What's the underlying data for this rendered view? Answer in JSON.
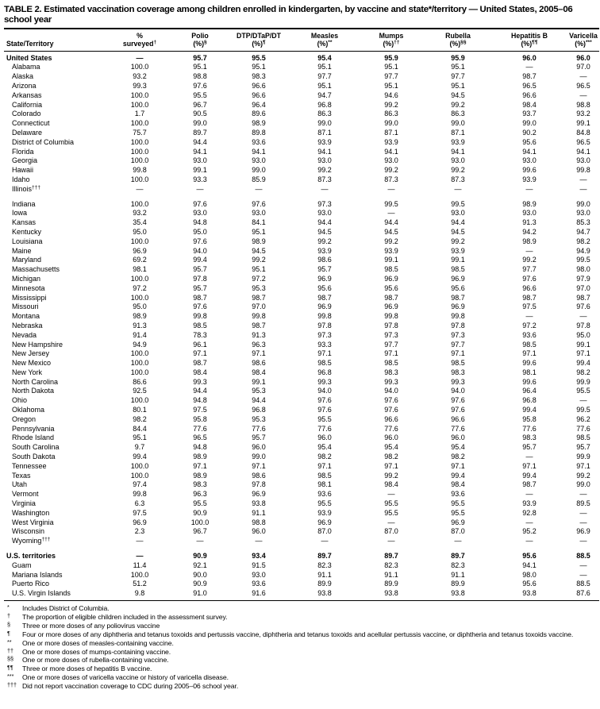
{
  "title": "TABLE 2. Estimated vaccination coverage among children enrolled in kindergarten, by vaccine and state*/territory — United States, 2005–06 school year",
  "table": {
    "columns": [
      {
        "line1": "State/Territory"
      },
      {
        "line1": "%",
        "line2": "surveyed",
        "sup": "†"
      },
      {
        "line1": "Polio",
        "line2": "(%)",
        "sup": "§"
      },
      {
        "line1": "DTP/DTaP/DT",
        "line2": "(%)",
        "sup": "¶"
      },
      {
        "line1": "Measles",
        "line2": "(%)",
        "sup": "**"
      },
      {
        "line1": "Mumps",
        "line2": "(%)",
        "sup": "††"
      },
      {
        "line1": "Rubella",
        "line2": "(%)",
        "sup": "§§"
      },
      {
        "line1": "Hepatitis B",
        "line2": "(%)",
        "sup": "¶¶"
      },
      {
        "line1": "Varicella",
        "line2": "(%)",
        "sup": "***"
      }
    ],
    "rows": [
      {
        "name": "United States",
        "section": true,
        "values": [
          "—",
          "95.7",
          "95.5",
          "95.4",
          "95.9",
          "95.9",
          "96.0",
          "96.0"
        ]
      },
      {
        "name": "Alabama",
        "values": [
          "100.0",
          "95.1",
          "95.1",
          "95.1",
          "95.1",
          "95.1",
          "—",
          "97.0"
        ]
      },
      {
        "name": "Alaska",
        "values": [
          "93.2",
          "98.8",
          "98.3",
          "97.7",
          "97.7",
          "97.7",
          "98.7",
          "—"
        ]
      },
      {
        "name": "Arizona",
        "values": [
          "99.3",
          "97.6",
          "96.6",
          "95.1",
          "95.1",
          "95.1",
          "96.5",
          "96.5"
        ]
      },
      {
        "name": "Arkansas",
        "values": [
          "100.0",
          "95.5",
          "96.6",
          "94.7",
          "94.6",
          "94.5",
          "96.6",
          "—"
        ]
      },
      {
        "name": "California",
        "values": [
          "100.0",
          "96.7",
          "96.4",
          "96.8",
          "99.2",
          "99.2",
          "98.4",
          "98.8"
        ]
      },
      {
        "name": "Colorado",
        "values": [
          "1.7",
          "90.5",
          "89.6",
          "86.3",
          "86.3",
          "86.3",
          "93.7",
          "93.2"
        ]
      },
      {
        "name": "Connecticut",
        "values": [
          "100.0",
          "99.0",
          "98.9",
          "99.0",
          "99.0",
          "99.0",
          "99.0",
          "99.1"
        ]
      },
      {
        "name": "Delaware",
        "values": [
          "75.7",
          "89.7",
          "89.8",
          "87.1",
          "87.1",
          "87.1",
          "90.2",
          "84.8"
        ]
      },
      {
        "name": "District of Columbia",
        "values": [
          "100.0",
          "94.4",
          "93.6",
          "93.9",
          "93.9",
          "93.9",
          "95.6",
          "96.5"
        ]
      },
      {
        "name": "Florida",
        "values": [
          "100.0",
          "94.1",
          "94.1",
          "94.1",
          "94.1",
          "94.1",
          "94.1",
          "94.1"
        ]
      },
      {
        "name": "Georgia",
        "values": [
          "100.0",
          "93.0",
          "93.0",
          "93.0",
          "93.0",
          "93.0",
          "93.0",
          "93.0"
        ]
      },
      {
        "name": "Hawaii",
        "values": [
          "99.8",
          "99.1",
          "99.0",
          "99.2",
          "99.2",
          "99.2",
          "99.6",
          "99.8"
        ]
      },
      {
        "name": "Idaho",
        "values": [
          "100.0",
          "93.3",
          "85.9",
          "87.3",
          "87.3",
          "87.3",
          "93.9",
          "—"
        ]
      },
      {
        "name": "Illinois",
        "sup": "†††",
        "values": [
          "—",
          "—",
          "—",
          "—",
          "—",
          "—",
          "—",
          "—"
        ]
      },
      {
        "name": "Indiana",
        "gap_above": true,
        "values": [
          "100.0",
          "97.6",
          "97.6",
          "97.3",
          "99.5",
          "99.5",
          "98.9",
          "99.0"
        ]
      },
      {
        "name": "Iowa",
        "values": [
          "93.2",
          "93.0",
          "93.0",
          "93.0",
          "—",
          "93.0",
          "93.0",
          "93.0"
        ]
      },
      {
        "name": "Kansas",
        "values": [
          "35.4",
          "94.8",
          "84.1",
          "94.4",
          "94.4",
          "94.4",
          "91.3",
          "85.3"
        ]
      },
      {
        "name": "Kentucky",
        "values": [
          "95.0",
          "95.0",
          "95.1",
          "94.5",
          "94.5",
          "94.5",
          "94.2",
          "94.7"
        ]
      },
      {
        "name": "Louisiana",
        "values": [
          "100.0",
          "97.6",
          "98.9",
          "99.2",
          "99.2",
          "99.2",
          "98.9",
          "98.2"
        ]
      },
      {
        "name": "Maine",
        "values": [
          "96.9",
          "94.0",
          "94.5",
          "93.9",
          "93.9",
          "93.9",
          "—",
          "94.9"
        ]
      },
      {
        "name": "Maryland",
        "values": [
          "69.2",
          "99.4",
          "99.2",
          "98.6",
          "99.1",
          "99.1",
          "99.2",
          "99.5"
        ]
      },
      {
        "name": "Massachusetts",
        "values": [
          "98.1",
          "95.7",
          "95.1",
          "95.7",
          "98.5",
          "98.5",
          "97.7",
          "98.0"
        ]
      },
      {
        "name": "Michigan",
        "values": [
          "100.0",
          "97.8",
          "97.2",
          "96.9",
          "96.9",
          "96.9",
          "97.6",
          "97.9"
        ]
      },
      {
        "name": "Minnesota",
        "values": [
          "97.2",
          "95.7",
          "95.3",
          "95.6",
          "95.6",
          "95.6",
          "96.6",
          "97.0"
        ]
      },
      {
        "name": "Mississippi",
        "values": [
          "100.0",
          "98.7",
          "98.7",
          "98.7",
          "98.7",
          "98.7",
          "98.7",
          "98.7"
        ]
      },
      {
        "name": "Missouri",
        "values": [
          "95.0",
          "97.6",
          "97.0",
          "96.9",
          "96.9",
          "96.9",
          "97.5",
          "97.6"
        ]
      },
      {
        "name": "Montana",
        "values": [
          "98.9",
          "99.8",
          "99.8",
          "99.8",
          "99.8",
          "99.8",
          "—",
          "—"
        ]
      },
      {
        "name": "Nebraska",
        "values": [
          "91.3",
          "98.5",
          "98.7",
          "97.8",
          "97.8",
          "97.8",
          "97.2",
          "97.8"
        ]
      },
      {
        "name": "Nevada",
        "values": [
          "91.4",
          "78.3",
          "91.3",
          "97.3",
          "97.3",
          "97.3",
          "93.6",
          "95.0"
        ]
      },
      {
        "name": "New Hampshire",
        "values": [
          "94.9",
          "96.1",
          "96.3",
          "93.3",
          "97.7",
          "97.7",
          "98.5",
          "99.1"
        ]
      },
      {
        "name": "New Jersey",
        "values": [
          "100.0",
          "97.1",
          "97.1",
          "97.1",
          "97.1",
          "97.1",
          "97.1",
          "97.1"
        ]
      },
      {
        "name": "New Mexico",
        "values": [
          "100.0",
          "98.7",
          "98.6",
          "98.5",
          "98.5",
          "98.5",
          "99.6",
          "99.4"
        ]
      },
      {
        "name": "New York",
        "values": [
          "100.0",
          "98.4",
          "98.4",
          "96.8",
          "98.3",
          "98.3",
          "98.1",
          "98.2"
        ]
      },
      {
        "name": "North Carolina",
        "values": [
          "86.6",
          "99.3",
          "99.1",
          "99.3",
          "99.3",
          "99.3",
          "99.6",
          "99.9"
        ]
      },
      {
        "name": "North Dakota",
        "values": [
          "92.5",
          "94.4",
          "95.3",
          "94.0",
          "94.0",
          "94.0",
          "96.4",
          "95.5"
        ]
      },
      {
        "name": "Ohio",
        "values": [
          "100.0",
          "94.8",
          "94.4",
          "97.6",
          "97.6",
          "97.6",
          "96.8",
          "—"
        ]
      },
      {
        "name": "Oklahoma",
        "values": [
          "80.1",
          "97.5",
          "96.8",
          "97.6",
          "97.6",
          "97.6",
          "99.4",
          "99.5"
        ]
      },
      {
        "name": "Oregon",
        "values": [
          "98.2",
          "95.8",
          "95.3",
          "95.5",
          "96.6",
          "96.6",
          "95.8",
          "96.2"
        ]
      },
      {
        "name": "Pennsylvania",
        "values": [
          "84.4",
          "77.6",
          "77.6",
          "77.6",
          "77.6",
          "77.6",
          "77.6",
          "77.6"
        ]
      },
      {
        "name": "Rhode Island",
        "values": [
          "95.1",
          "96.5",
          "95.7",
          "96.0",
          "96.0",
          "96.0",
          "98.3",
          "98.5"
        ]
      },
      {
        "name": "South Carolina",
        "values": [
          "9.7",
          "94.8",
          "96.0",
          "95.4",
          "95.4",
          "95.4",
          "95.7",
          "95.7"
        ]
      },
      {
        "name": "South Dakota",
        "values": [
          "99.4",
          "98.9",
          "99.0",
          "98.2",
          "98.2",
          "98.2",
          "—",
          "99.9"
        ]
      },
      {
        "name": "Tennessee",
        "values": [
          "100.0",
          "97.1",
          "97.1",
          "97.1",
          "97.1",
          "97.1",
          "97.1",
          "97.1"
        ]
      },
      {
        "name": "Texas",
        "values": [
          "100.0",
          "98.9",
          "98.6",
          "98.5",
          "99.2",
          "99.4",
          "99.4",
          "99.2"
        ]
      },
      {
        "name": "Utah",
        "values": [
          "97.4",
          "98.3",
          "97.8",
          "98.1",
          "98.4",
          "98.4",
          "98.7",
          "99.0"
        ]
      },
      {
        "name": "Vermont",
        "values": [
          "99.8",
          "96.3",
          "96.9",
          "93.6",
          "—",
          "93.6",
          "—",
          "—"
        ]
      },
      {
        "name": "Virginia",
        "values": [
          "6.3",
          "95.5",
          "93.8",
          "95.5",
          "95.5",
          "95.5",
          "93.9",
          "89.5"
        ]
      },
      {
        "name": "Washington",
        "values": [
          "97.5",
          "90.9",
          "91.1",
          "93.9",
          "95.5",
          "95.5",
          "92.8",
          "—"
        ]
      },
      {
        "name": "West Virginia",
        "values": [
          "96.9",
          "100.0",
          "98.8",
          "96.9",
          "—",
          "96.9",
          "—",
          "—"
        ]
      },
      {
        "name": "Wisconsin",
        "values": [
          "2.3",
          "96.7",
          "96.0",
          "87.0",
          "87.0",
          "87.0",
          "95.2",
          "96.9"
        ]
      },
      {
        "name": "Wyoming",
        "sup": "†††",
        "values": [
          "—",
          "—",
          "—",
          "—",
          "—",
          "—",
          "—",
          "—"
        ]
      },
      {
        "name": "U.S. territories",
        "section": true,
        "gap_above": true,
        "values": [
          "—",
          "90.9",
          "93.4",
          "89.7",
          "89.7",
          "89.7",
          "95.6",
          "88.5"
        ]
      },
      {
        "name": "Guam",
        "values": [
          "11.4",
          "92.1",
          "91.5",
          "82.3",
          "82.3",
          "82.3",
          "94.1",
          "—"
        ]
      },
      {
        "name": "Mariana Islands",
        "values": [
          "100.0",
          "90.0",
          "93.0",
          "91.1",
          "91.1",
          "91.1",
          "98.0",
          "—"
        ]
      },
      {
        "name": "Puerto Rico",
        "values": [
          "51.2",
          "90.9",
          "93.6",
          "89.9",
          "89.9",
          "89.9",
          "95.6",
          "88.5"
        ]
      },
      {
        "name": "U.S. Virgin Islands",
        "values": [
          "9.8",
          "91.0",
          "91.6",
          "93.8",
          "93.8",
          "93.8",
          "93.8",
          "87.6"
        ]
      }
    ]
  },
  "footnotes": [
    {
      "sym": "*",
      "text": "Includes District of Columbia."
    },
    {
      "sym": "†",
      "text": "The proportion of eligible children included in the assessment survey."
    },
    {
      "sym": "§",
      "text": "Three or more doses of any poliovirus vaccine"
    },
    {
      "sym": "¶",
      "text": "Four or more doses of any diphtheria and tetanus toxoids and pertussis vaccine, diphtheria and tetanus toxoids and acellular pertussis vaccine, or diphtheria and tetanus toxoids vaccine."
    },
    {
      "sym": "**",
      "text": "One or more doses of measles-containing vaccine."
    },
    {
      "sym": "††",
      "text": "One or more doses of mumps-containing vaccine."
    },
    {
      "sym": "§§",
      "text": "One or more doses of rubella-containing vaccine."
    },
    {
      "sym": "¶¶",
      "text": "Three or more doses of hepatitis B vaccine."
    },
    {
      "sym": "***",
      "text": "One or more doses of varicella vaccine or history of varicella disease."
    },
    {
      "sym": "†††",
      "text": "Did not report vaccination coverage to CDC during 2005–06 school year."
    }
  ]
}
